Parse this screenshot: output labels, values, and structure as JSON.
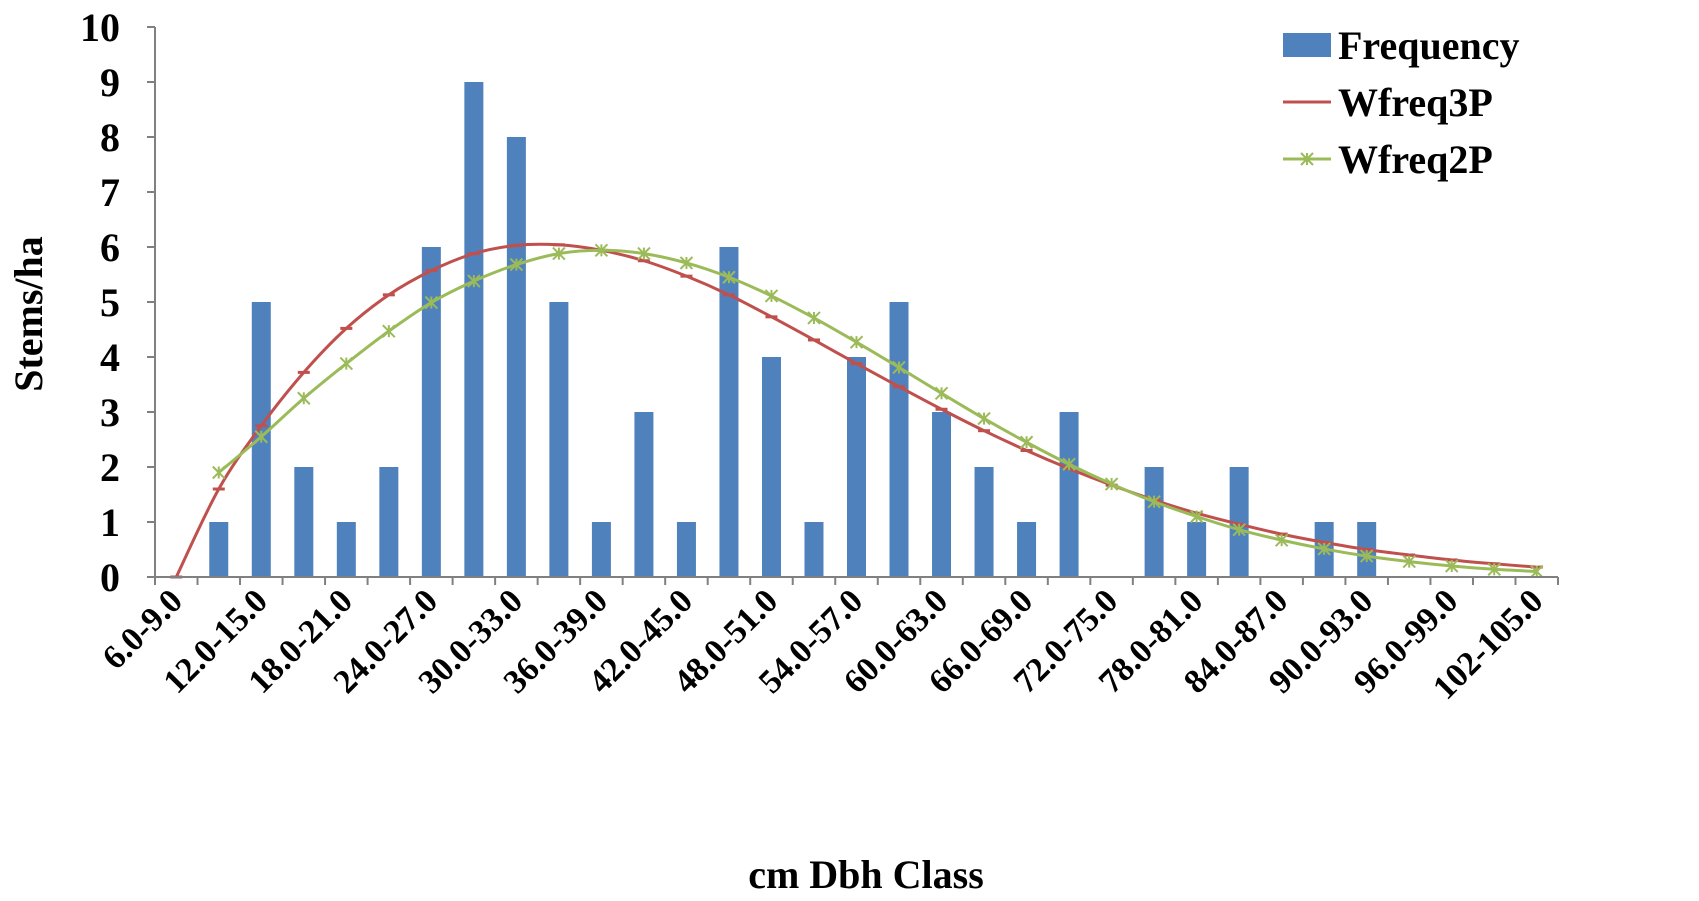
{
  "chart_data": {
    "type": "bar",
    "xlabel": "cm Dbh Class",
    "ylabel": "Stems/ha",
    "ylim": [
      0,
      10
    ],
    "yticks": [
      0,
      1,
      2,
      3,
      4,
      5,
      6,
      7,
      8,
      9,
      10
    ],
    "legend_position": "top-right",
    "grid": false,
    "categories": [
      "6.0-9.0",
      "9.0-12.0",
      "12.0-15.0",
      "15.0-18.0",
      "18.0-21.0",
      "21.0-24.0",
      "24.0-27.0",
      "27.0-30.0",
      "30.0-33.0",
      "33.0-36.0",
      "36.0-39.0",
      "39.0-42.0",
      "42.0-45.0",
      "45.0-48.0",
      "48.0-51.0",
      "51.0-54.0",
      "54.0-57.0",
      "57.0-60.0",
      "60.0-63.0",
      "63.0-66.0",
      "66.0-69.0",
      "69.0-72.0",
      "72.0-75.0",
      "75.0-78.0",
      "78.0-81.0",
      "81.0-84.0",
      "84.0-87.0",
      "87.0-90.0",
      "90.0-93.0",
      "93.0-96.0",
      "96.0-99.0",
      "99.0-102.0",
      "102-105.0"
    ],
    "visible_tick_labels": [
      "6.0-9.0",
      "12.0-15.0",
      "18.0-21.0",
      "24.0-27.0",
      "30.0-33.0",
      "36.0-39.0",
      "42.0-45.0",
      "48.0-51.0",
      "54.0-57.0",
      "60.0-63.0",
      "66.0-69.0",
      "72.0-75.0",
      "78.0-81.0",
      "84.0-87.0",
      "90.0-93.0",
      "96.0-99.0",
      "102-105.0"
    ],
    "series": [
      {
        "name": "Frequency",
        "type": "bar",
        "color": "#4F81BD",
        "values": [
          0,
          1,
          5,
          2,
          1,
          2,
          6,
          9,
          8,
          5,
          1,
          3,
          1,
          6,
          4,
          1,
          4,
          5,
          3,
          2,
          1,
          3,
          0,
          2,
          1,
          2,
          0,
          1,
          1,
          0,
          0,
          0,
          0
        ]
      },
      {
        "name": "Wfreq3P",
        "type": "line",
        "color": "#C0504D",
        "marker": "dash",
        "values": [
          0,
          1.6,
          2.75,
          3.72,
          4.52,
          5.13,
          5.57,
          5.88,
          6.03,
          6.04,
          5.94,
          5.75,
          5.47,
          5.13,
          4.73,
          4.31,
          3.88,
          3.46,
          3.05,
          2.66,
          2.3,
          1.97,
          1.67,
          1.4,
          1.16,
          0.96,
          0.78,
          0.63,
          0.5,
          0.4,
          0.31,
          0.24,
          0.18
        ]
      },
      {
        "name": "Wfreq2P",
        "type": "line",
        "color": "#9BBB59",
        "marker": "star",
        "values": [
          null,
          1.9,
          2.55,
          3.25,
          3.88,
          4.47,
          4.99,
          5.38,
          5.68,
          5.88,
          5.94,
          5.88,
          5.71,
          5.45,
          5.11,
          4.71,
          4.27,
          3.81,
          3.34,
          2.88,
          2.45,
          2.05,
          1.69,
          1.37,
          1.1,
          0.86,
          0.67,
          0.51,
          0.38,
          0.28,
          0.2,
          0.14,
          0.1
        ]
      }
    ]
  }
}
